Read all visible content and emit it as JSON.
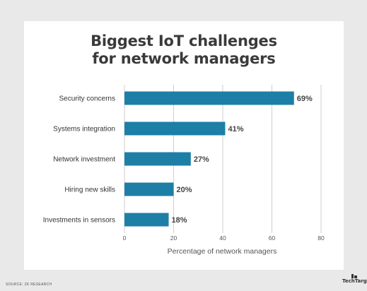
{
  "chart_data": {
    "type": "bar",
    "orientation": "horizontal",
    "title_lines": [
      "Biggest IoT challenges",
      "for network managers"
    ],
    "categories": [
      "Security concerns",
      "Systems integration",
      "Network investment",
      "Hiring new skills",
      "Investments in sensors"
    ],
    "values": [
      69,
      41,
      27,
      20,
      18
    ],
    "value_labels": [
      "69%",
      "41%",
      "27%",
      "20%",
      "18%"
    ],
    "xlabel": "Percentage of network managers",
    "ylabel": "",
    "xlim": [
      0,
      80
    ],
    "xticks": [
      "0",
      "20",
      "40",
      "60",
      "80"
    ],
    "grid": true,
    "bar_color": "#1e7fa6",
    "legend": "none"
  },
  "footer": {
    "source": "SOURCE: ZK RESEARCH",
    "logo": "TechTarget"
  }
}
